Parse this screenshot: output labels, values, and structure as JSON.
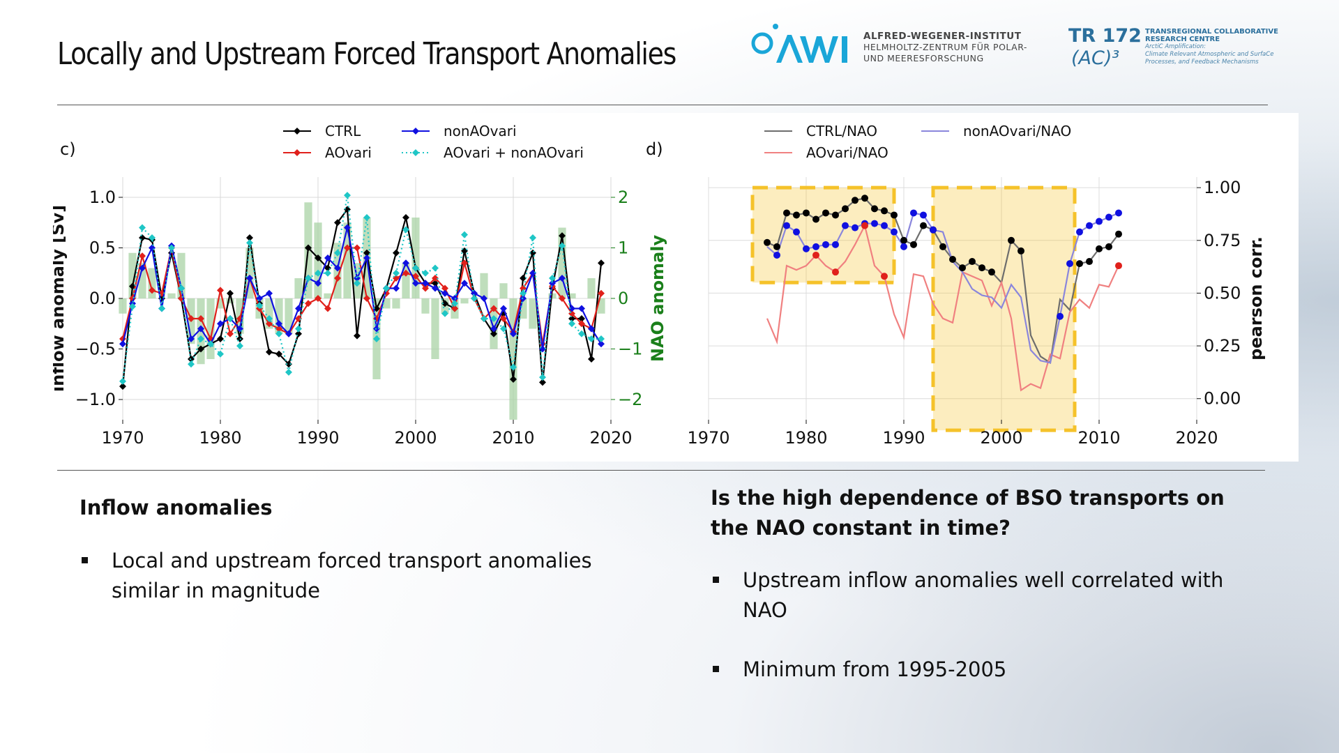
{
  "title": "Locally and Upstream Forced Transport Anomalies",
  "logos": {
    "awi": {
      "mark": "AWI",
      "lines": [
        "ALFRED-WEGENER-INSTITUT",
        "HELMHOLTZ-ZENTRUM FÜR POLAR-",
        "UND MEERESFORSCHUNG"
      ]
    },
    "tr": {
      "big": "TR 172",
      "ac": "(AC)³",
      "lines": [
        "TRANSREGIONAL COLLABORATIVE",
        "RESEARCH CENTRE"
      ],
      "sub": [
        "ArctiC Amplification:",
        "Climate Relevant Atmospheric and SurfaCe",
        "Processes, and Feedback Mechanisms"
      ]
    }
  },
  "colors": {
    "ctrl": "#000000",
    "aovari": "#e0201b",
    "nonaovari": "#1010e0",
    "sum": "#1fc6c6",
    "nao_bar": "#a9d3a5",
    "ctrl_nao": "#6d6d6d",
    "aovari_nao": "#f08080",
    "nonaovari_nao": "#8a86dc",
    "highlight": "#f5c22a",
    "green_axis": "#1a7f1a"
  },
  "chart_data": [
    {
      "type": "line",
      "panel": "c)",
      "ylabel": "inflow anomaly [Sv]",
      "ylabel_right": "NAO anomaly",
      "xlim": [
        1970,
        2020
      ],
      "ylim": [
        -1.2,
        1.2
      ],
      "ylim_right": [
        -2.4,
        2.4
      ],
      "xticks": [
        "1970",
        "1980",
        "1990",
        "2000",
        "2010",
        "2020"
      ],
      "yticks": [
        "1.0",
        "0.5",
        "0.0",
        "−0.5",
        "−1.0"
      ],
      "yticks_right": [
        "2",
        "1",
        "0",
        "−1",
        "−2"
      ],
      "grid": true,
      "legend": "top-center",
      "x": [
        1970,
        1971,
        1972,
        1973,
        1974,
        1975,
        1976,
        1977,
        1978,
        1979,
        1980,
        1981,
        1982,
        1983,
        1984,
        1985,
        1986,
        1987,
        1988,
        1989,
        1990,
        1991,
        1992,
        1993,
        1994,
        1995,
        1996,
        1997,
        1998,
        1999,
        2000,
        2001,
        2002,
        2003,
        2004,
        2005,
        2006,
        2007,
        2008,
        2009,
        2010,
        2011,
        2012,
        2013,
        2014,
        2015,
        2016,
        2017,
        2018,
        2019
      ],
      "series": [
        {
          "name": "CTRL",
          "key": "ctrl",
          "style": "solid",
          "values": [
            -0.87,
            0.12,
            0.6,
            0.58,
            0.0,
            0.45,
            0.0,
            -0.6,
            -0.5,
            -0.45,
            -0.4,
            0.05,
            -0.4,
            0.6,
            -0.05,
            -0.53,
            -0.55,
            -0.65,
            -0.35,
            0.5,
            0.4,
            0.3,
            0.75,
            0.88,
            -0.37,
            0.45,
            -0.1,
            0.1,
            0.45,
            0.8,
            0.3,
            0.15,
            0.15,
            -0.05,
            -0.1,
            0.47,
            0.05,
            -0.2,
            -0.35,
            -0.15,
            -0.8,
            0.2,
            0.45,
            -0.83,
            0.1,
            0.62,
            -0.2,
            -0.2,
            -0.6,
            0.35
          ]
        },
        {
          "name": "AOvari",
          "key": "aovari",
          "style": "solid",
          "values": [
            -0.4,
            0.0,
            0.42,
            0.08,
            0.05,
            0.5,
            0.0,
            -0.2,
            -0.2,
            -0.4,
            0.08,
            -0.35,
            -0.2,
            0.2,
            -0.1,
            -0.25,
            -0.3,
            -0.35,
            -0.2,
            -0.05,
            0.0,
            -0.1,
            0.2,
            0.5,
            0.5,
            0.0,
            -0.2,
            0.05,
            0.2,
            0.25,
            0.22,
            0.1,
            0.2,
            0.1,
            -0.1,
            0.35,
            0.0,
            -0.2,
            -0.1,
            -0.2,
            -0.33,
            0.1,
            0.25,
            -0.45,
            0.12,
            0.0,
            -0.15,
            -0.25,
            -0.3,
            0.05
          ]
        },
        {
          "name": "nonAOvari",
          "key": "nonaovari",
          "style": "solid",
          "values": [
            -0.45,
            -0.05,
            0.3,
            0.5,
            -0.1,
            0.52,
            0.1,
            -0.4,
            -0.3,
            -0.45,
            -0.25,
            -0.2,
            -0.3,
            0.2,
            0.0,
            0.05,
            -0.25,
            -0.35,
            -0.1,
            0.2,
            0.15,
            0.4,
            0.3,
            0.7,
            0.2,
            0.4,
            -0.3,
            0.1,
            0.1,
            0.35,
            0.15,
            0.15,
            0.1,
            0.05,
            0.0,
            0.15,
            0.05,
            0.0,
            -0.3,
            -0.1,
            -0.35,
            0.0,
            0.25,
            -0.5,
            0.15,
            0.2,
            -0.1,
            -0.1,
            -0.3,
            -0.45
          ]
        },
        {
          "name": "AOvari + nonAOvari",
          "key": "sum",
          "style": "dotted",
          "values": [
            -0.82,
            -0.08,
            0.7,
            0.6,
            -0.1,
            0.5,
            0.1,
            -0.65,
            -0.4,
            -0.45,
            -0.55,
            -0.2,
            -0.47,
            0.55,
            -0.07,
            -0.2,
            -0.35,
            -0.73,
            -0.3,
            0.2,
            0.25,
            0.25,
            0.45,
            1.02,
            0.15,
            0.8,
            -0.4,
            0.1,
            0.25,
            0.68,
            0.3,
            0.25,
            0.3,
            -0.15,
            -0.05,
            0.63,
            0.0,
            -0.2,
            -0.2,
            -0.3,
            -0.68,
            0.05,
            0.6,
            -0.78,
            0.2,
            0.52,
            -0.25,
            -0.35,
            -0.4,
            -0.4
          ]
        },
        {
          "name": "NAO anomaly",
          "key": "nao_bar",
          "style": "bar",
          "axis": "right",
          "values": [
            -0.3,
            0.9,
            0.7,
            0.6,
            0.0,
            0.1,
            0.9,
            -0.9,
            -1.3,
            -1.2,
            -0.2,
            -0.1,
            -0.7,
            1.0,
            -0.4,
            -0.6,
            -0.7,
            -0.7,
            0.4,
            1.9,
            1.5,
            0.1,
            1.1,
            1.5,
            0.7,
            1.6,
            -1.6,
            -0.2,
            -0.2,
            0.7,
            1.6,
            -0.3,
            -1.2,
            -0.3,
            -0.4,
            -0.1,
            0.0,
            0.5,
            -1.0,
            0.3,
            -2.4,
            -0.4,
            -0.6,
            0.0,
            0.1,
            1.4,
            0.1,
            0.0,
            0.4,
            -0.3
          ]
        }
      ],
      "legend_entries": [
        "CTRL",
        "AOvari",
        "nonAOvari",
        "AOvari + nonAOvari"
      ]
    },
    {
      "type": "line",
      "panel": "d)",
      "ylabel": "pearson corr.",
      "xlim": [
        1970,
        2020
      ],
      "ylim": [
        -0.1,
        1.05
      ],
      "xticks": [
        "1970",
        "1980",
        "1990",
        "2000",
        "2010",
        "2020"
      ],
      "yticks": [
        "1.00",
        "0.75",
        "0.50",
        "0.25",
        "0.00"
      ],
      "grid": true,
      "legend": "top-center",
      "x": [
        1976,
        1977,
        1978,
        1979,
        1980,
        1981,
        1982,
        1983,
        1984,
        1985,
        1986,
        1987,
        1988,
        1989,
        1990,
        1991,
        1992,
        1993,
        1994,
        1995,
        1996,
        1997,
        1998,
        1999,
        2000,
        2001,
        2002,
        2003,
        2004,
        2005,
        2006,
        2007,
        2008,
        2009,
        2010,
        2011,
        2012
      ],
      "series": [
        {
          "name": "CTRL/NAO",
          "key": "ctrl_nao",
          "values": [
            0.74,
            0.72,
            0.88,
            0.87,
            0.88,
            0.85,
            0.88,
            0.87,
            0.9,
            0.94,
            0.95,
            0.9,
            0.89,
            0.87,
            0.75,
            0.73,
            0.82,
            0.8,
            0.72,
            0.66,
            0.62,
            0.65,
            0.62,
            0.6,
            0.55,
            0.75,
            0.7,
            0.3,
            0.2,
            0.17,
            0.47,
            0.42,
            0.64,
            0.65,
            0.71,
            0.72,
            0.78
          ]
        },
        {
          "name": "AOvari/NAO",
          "key": "aovari_nao",
          "values": [
            0.38,
            0.27,
            0.63,
            0.61,
            0.63,
            0.68,
            0.63,
            0.6,
            0.65,
            0.73,
            0.82,
            0.63,
            0.58,
            0.4,
            0.29,
            0.59,
            0.58,
            0.45,
            0.38,
            0.36,
            0.6,
            0.58,
            0.56,
            0.44,
            0.55,
            0.38,
            0.04,
            0.07,
            0.05,
            0.21,
            0.19,
            0.41,
            0.47,
            0.43,
            0.54,
            0.53,
            0.63
          ]
        },
        {
          "name": "nonAOvari/NAO",
          "key": "nonaovari_nao",
          "values": [
            0.72,
            0.68,
            0.82,
            0.79,
            0.71,
            0.72,
            0.73,
            0.73,
            0.82,
            0.81,
            0.83,
            0.83,
            0.82,
            0.79,
            0.72,
            0.88,
            0.87,
            0.8,
            0.79,
            0.65,
            0.6,
            0.52,
            0.49,
            0.48,
            0.43,
            0.54,
            0.48,
            0.23,
            0.18,
            0.17,
            0.39,
            0.64,
            0.79,
            0.82,
            0.84,
            0.86,
            0.88
          ]
        }
      ],
      "highlight_ranges": [
        [
          1974.5,
          1989
        ],
        [
          1993,
          2007.5
        ]
      ],
      "legend_entries": [
        "CTRL/NAO",
        "AOvari/NAO",
        "nonAOvari/NAO"
      ]
    }
  ],
  "left_block": {
    "heading": "Inflow anomalies",
    "bullets": [
      "Local and upstream forced transport anomalies similar in magnitude"
    ]
  },
  "right_block": {
    "heading": "Is the high dependence of BSO transports on the NAO constant in time?",
    "bullets": [
      "Upstream inflow anomalies well correlated with NAO",
      "Minimum from 1995-2005"
    ]
  }
}
